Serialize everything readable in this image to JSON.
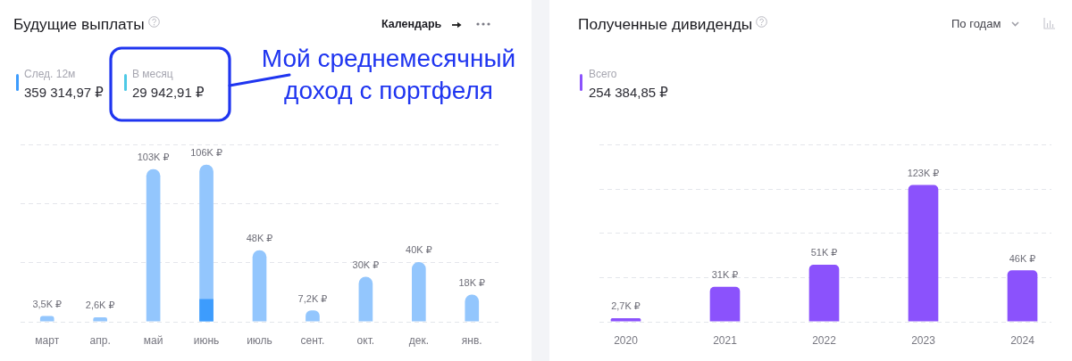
{
  "chart_data": [
    {
      "type": "bar",
      "title": "Будущие выплаты",
      "categories": [
        "март",
        "апр.",
        "май",
        "июнь",
        "июль",
        "сент.",
        "окт.",
        "дек.",
        "янв."
      ],
      "series": [
        {
          "color": "#93c6fd",
          "values": [
            3.5,
            2.6,
            103,
            106,
            48,
            7.2,
            30,
            40,
            18
          ],
          "value_labels": [
            "3,5K ₽",
            "2,6K ₽",
            "103K ₽",
            "106K ₽",
            "48K ₽",
            "7,2K ₽",
            "30K ₽",
            "40K ₽",
            "18K ₽"
          ]
        },
        {
          "color": "#3d9cfd",
          "values": [
            null,
            null,
            null,
            15,
            null,
            null,
            null,
            null,
            null
          ]
        }
      ],
      "ylim": [
        0,
        120
      ],
      "yticks": [
        {
          "value": 0,
          "label": null
        },
        {
          "value": 40,
          "label": null
        },
        {
          "value": 80,
          "label": null
        },
        {
          "value": 120,
          "label": null
        }
      ],
      "grid": "y",
      "tick_labels": "x",
      "annotations": [
        "След. 12м",
        "359 314,97 ₽",
        "В месяц",
        "29 942,91 ₽",
        "Календарь",
        "Мой среднемесячный доход с портфеля"
      ]
    },
    {
      "type": "bar",
      "title": "Полученные дивиденды",
      "categories": [
        "2020",
        "2021",
        "2022",
        "2023",
        "2024"
      ],
      "values": [
        2.7,
        31,
        51,
        123,
        46
      ],
      "color": "#8b52fc",
      "value_labels": [
        "2,7K ₽",
        "31K ₽",
        "51K ₽",
        "123K ₽",
        "46K ₽"
      ],
      "ylim": [
        0,
        160
      ],
      "grid": "y",
      "tick_labels": "x",
      "annotations": [
        "По годам",
        "Всего",
        "254 384,85 ₽"
      ]
    }
  ]
}
